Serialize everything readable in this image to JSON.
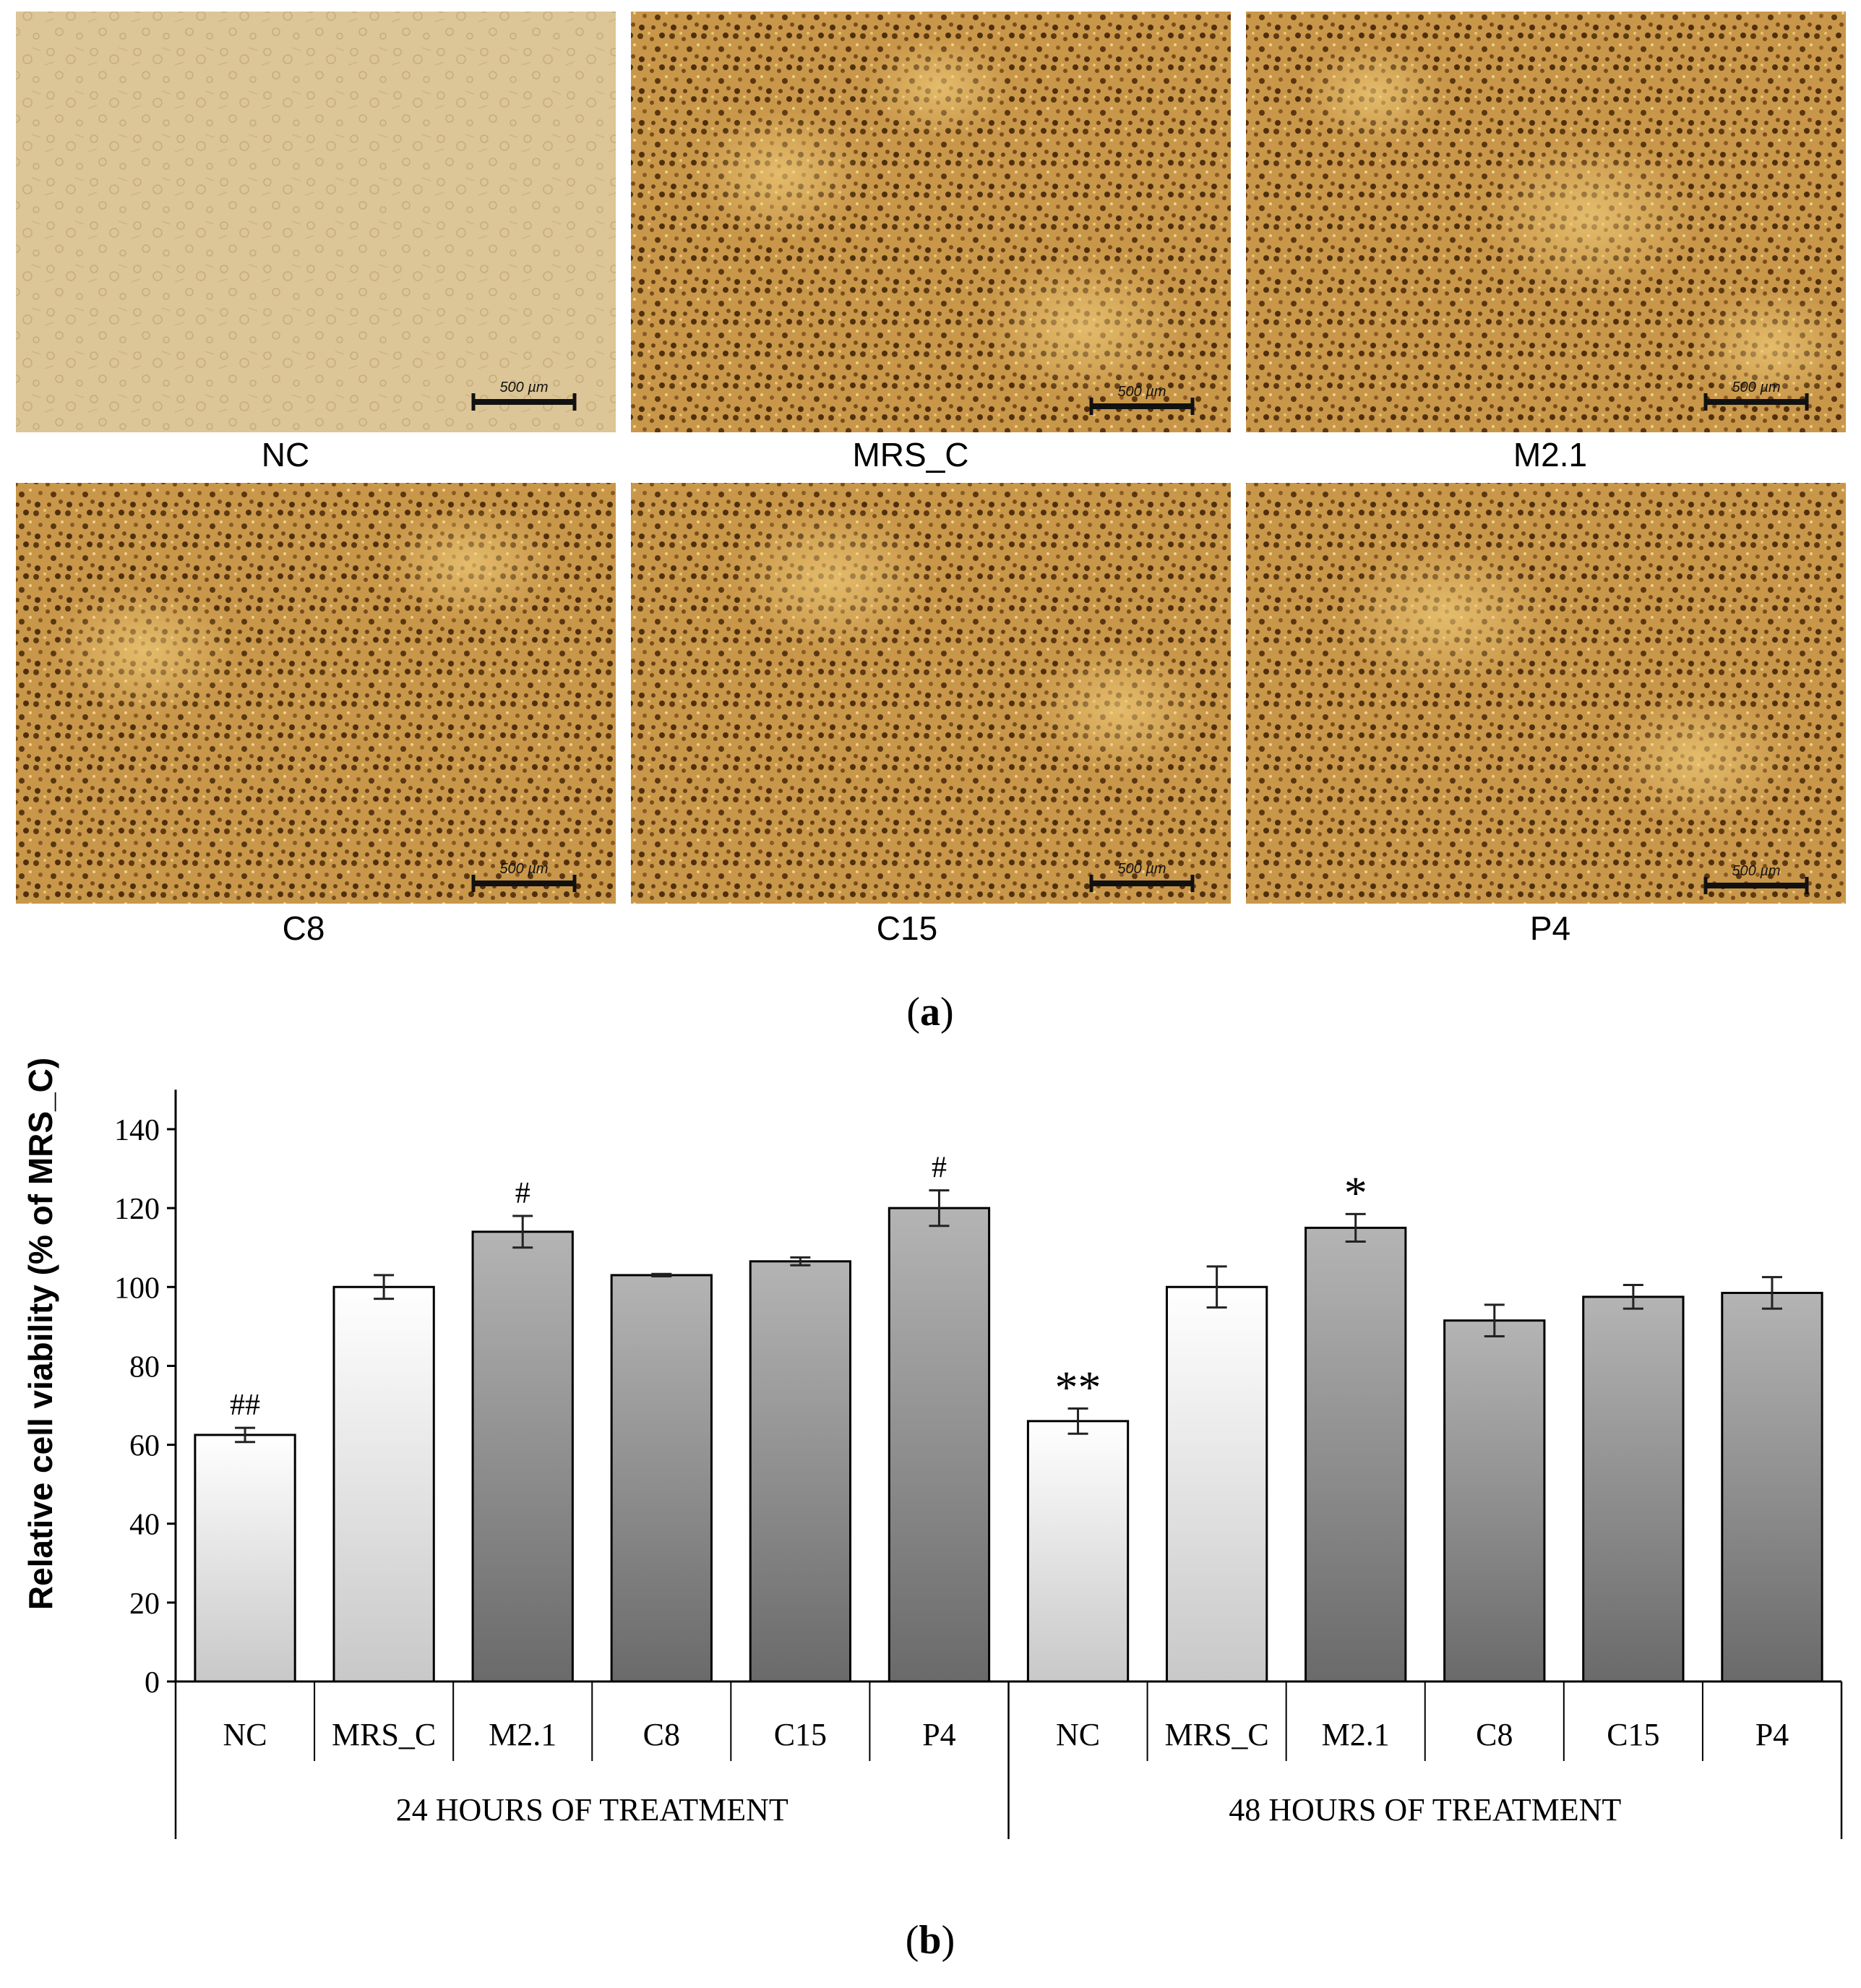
{
  "panel_a": {
    "label": "a",
    "images": [
      {
        "caption": "NC",
        "scale_text": "500 µm",
        "tone": "light"
      },
      {
        "caption": "MRS_C",
        "scale_text": "500 µm",
        "tone": "dark"
      },
      {
        "caption": "M2.1",
        "scale_text": "500 µm",
        "tone": "dark"
      },
      {
        "caption": "C8",
        "scale_text": "500 µm",
        "tone": "dark"
      },
      {
        "caption": "C15",
        "scale_text": "500 µm",
        "tone": "dark"
      },
      {
        "caption": "P4",
        "scale_text": "500 µm",
        "tone": "dark"
      }
    ]
  },
  "panel_b": {
    "label": "b"
  },
  "colors": {
    "light_bar_top": "#ffffff",
    "light_bar_bottom": "#c8c8c8",
    "dark_bar_top": "#b4b4b4",
    "dark_bar_bottom": "#6a6a6a",
    "micro_light": "#d9c08f",
    "micro_dark": "#b07a2e"
  },
  "chart_data": {
    "type": "bar",
    "ylabel": "Relative cell viability (% of MRS_C)",
    "xlabel": "",
    "ylim": [
      0,
      140
    ],
    "yticks": [
      0,
      20,
      40,
      60,
      80,
      100,
      120,
      140
    ],
    "groups": [
      {
        "name": "24 HOURS OF TREATMENT",
        "categories": [
          "NC",
          "MRS_C",
          "M2.1",
          "C8",
          "C15",
          "P4"
        ],
        "values": [
          62.5,
          100,
          114,
          103,
          106.5,
          120
        ],
        "errors": [
          1.8,
          3,
          4,
          0.3,
          1,
          4.5
        ],
        "annotations": [
          "##",
          "",
          "#",
          "",
          "",
          "#"
        ],
        "styles": [
          "light",
          "light",
          "dark",
          "dark",
          "dark",
          "dark"
        ]
      },
      {
        "name": "48 HOURS OF TREATMENT",
        "categories": [
          "NC",
          "MRS_C",
          "M2.1",
          "C8",
          "C15",
          "P4"
        ],
        "values": [
          66,
          100,
          115,
          91.5,
          97.5,
          98.5
        ],
        "errors": [
          3.2,
          5.2,
          3.5,
          4,
          3,
          4
        ],
        "annotations": [
          "**",
          "",
          "*",
          "",
          "",
          ""
        ],
        "styles": [
          "light",
          "light",
          "dark",
          "dark",
          "dark",
          "dark"
        ]
      }
    ],
    "grid": false,
    "legend": "none"
  }
}
